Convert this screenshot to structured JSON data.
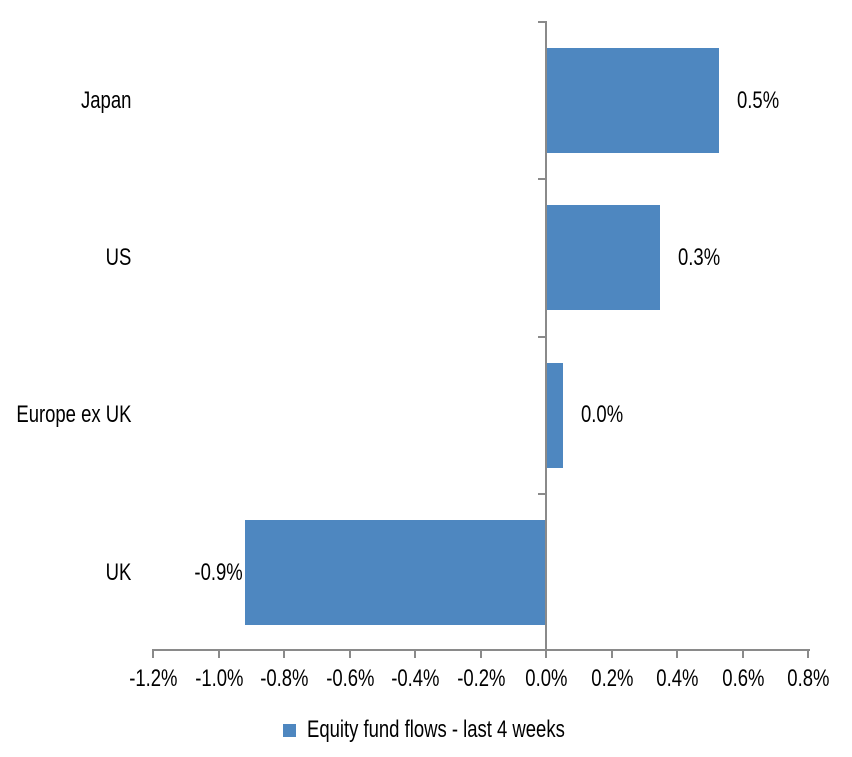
{
  "chart_data": {
    "type": "bar",
    "orientation": "horizontal",
    "title": "",
    "xlabel": "",
    "ylabel": "",
    "categories": [
      "Japan",
      "US",
      "Europe ex UK",
      "UK"
    ],
    "values": [
      0.5,
      0.3,
      0.0,
      -0.9
    ],
    "value_labels": [
      "0.5%",
      "0.3%",
      "0.0%",
      "-0.9%"
    ],
    "bar_extents_pct": [
      0.525,
      0.345,
      0.048,
      -0.915
    ],
    "x_tick_labels": [
      "-1.2%",
      "-1.0%",
      "-0.8%",
      "-0.6%",
      "-0.4%",
      "-0.2%",
      "0.0%",
      "0.2%",
      "0.4%",
      "0.6%",
      "0.8%"
    ],
    "xlim": [
      -1.2,
      0.8
    ],
    "x_tick_step": 0.2,
    "grid": false,
    "legend": {
      "position": "bottom",
      "label": "Equity fund flows - last 4 weeks"
    },
    "colors": {
      "bar": "#4E87C0",
      "axis": "#8a8a8a",
      "text": "#000000",
      "background": "#FFFFFF"
    }
  }
}
